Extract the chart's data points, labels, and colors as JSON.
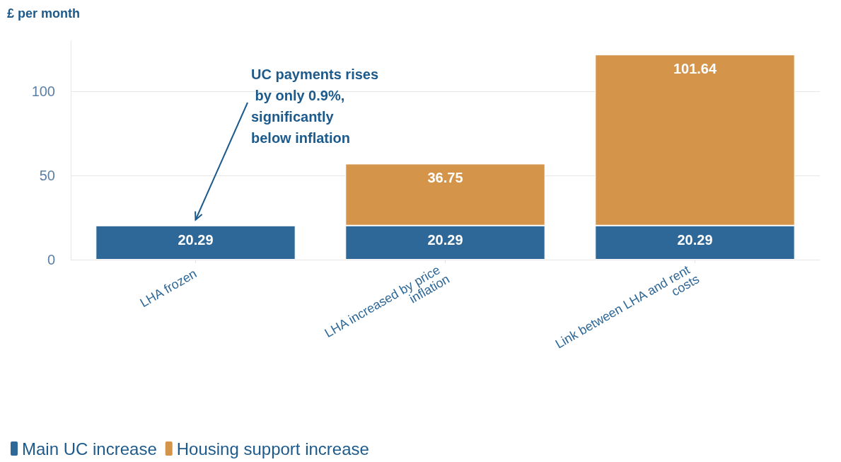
{
  "chart_data": {
    "type": "bar",
    "ylabel": "£ per month",
    "categories": [
      "LHA frozen",
      "LHA increased by price inflation",
      "Link between LHA and rent costs"
    ],
    "series": [
      {
        "name": "Main UC increase",
        "color": "#2e6898",
        "values": [
          20.29,
          20.29,
          20.29
        ]
      },
      {
        "name": "Housing support increase",
        "color": "#d4944a",
        "values": [
          null,
          36.75,
          101.64
        ]
      }
    ],
    "stacked": true,
    "data_labels": true,
    "ylim": [
      0,
      130
    ],
    "yticks": [
      0,
      50,
      100
    ],
    "grid": "y",
    "legend": "bottom left",
    "annotations": [
      {
        "text": "UC payments rises by only 0.9%, significantly below inflation",
        "x": "LHA frozen",
        "y": 20.29
      }
    ]
  }
}
